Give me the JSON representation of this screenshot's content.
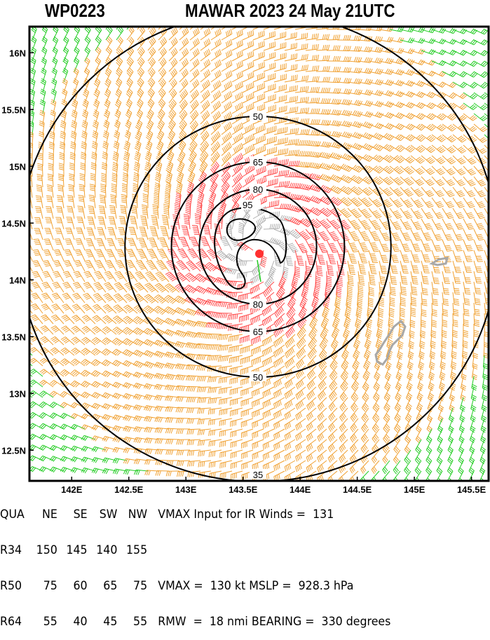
{
  "header": {
    "storm_id": "WP0223",
    "title": "MAWAR 2023 24 May 21UTC"
  },
  "chart_data": {
    "type": "wind-barb map with isotach contours",
    "lon_ticks": [
      "142E",
      "142.5E",
      "143E",
      "143.5E",
      "144E",
      "144.5E",
      "145E",
      "145.5E"
    ],
    "lon_values": [
      142,
      142.5,
      143,
      143.5,
      144,
      144.5,
      145,
      145.5
    ],
    "lat_ticks": [
      "16N",
      "15.5N",
      "15N",
      "14.5N",
      "14N",
      "13.5N",
      "13N",
      "12.5N"
    ],
    "lat_values": [
      16,
      15.5,
      15,
      14.5,
      14,
      13.5,
      13,
      12.5
    ],
    "xlim": [
      141.63,
      145.65
    ],
    "ylim": [
      12.23,
      16.23
    ],
    "isotach_levels": [
      "35",
      "50",
      "65",
      "80",
      "95"
    ],
    "storm_center": {
      "lat": 14.2,
      "lon": 143.65
    },
    "wind_colors": {
      "below_34kt": "#22cc22",
      "34_to_63kt": "#f0a030",
      "64_to_95kt": "#ff4a4a",
      "above_95kt": "#b0b0b0"
    },
    "contour_color": "#000000",
    "land_color": "#a0a0a0"
  },
  "table": {
    "header": [
      "QUA",
      "NE",
      "SE",
      "SW",
      "NW"
    ],
    "rows": [
      [
        "R34",
        "150",
        "145",
        "140",
        "155"
      ],
      [
        "R50",
        "75",
        "60",
        "65",
        "75"
      ],
      [
        "R64",
        "55",
        "40",
        "45",
        "55"
      ]
    ]
  },
  "summary": {
    "vmax_ir": "VMAX Input for IR Winds =  131",
    "vmax_mslp": "VMAX =  130 kt MSLP =  928.3 hPa",
    "rmw_bearing": "RMW  =  18 nmi BEARING =  330 degrees"
  }
}
